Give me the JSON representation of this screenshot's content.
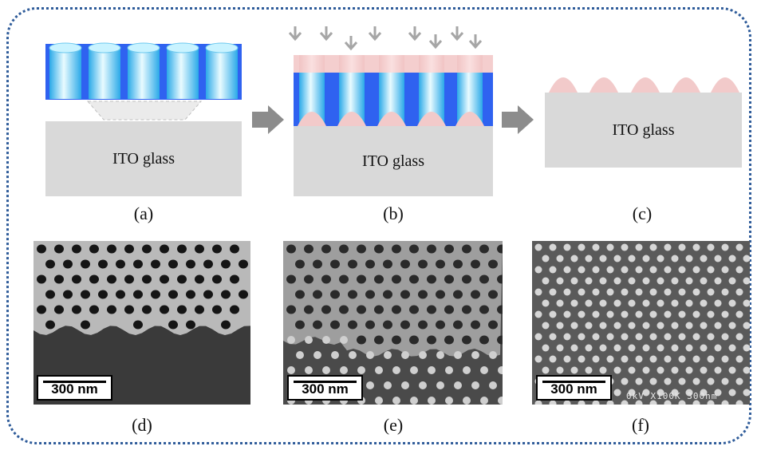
{
  "panels": {
    "a": {
      "caption": "(a)",
      "substrate_label": "ITO glass"
    },
    "b": {
      "caption": "(b)",
      "substrate_label": "ITO glass"
    },
    "c": {
      "caption": "(c)",
      "substrate_label": "ITO glass"
    },
    "d": {
      "caption": "(d)",
      "scale_bar": "300 nm"
    },
    "e": {
      "caption": "(e)",
      "scale_bar": "300 nm"
    },
    "f": {
      "caption": "(f)",
      "scale_bar": "300 nm",
      "instrument_text": "0kV  X100K  300nm"
    }
  },
  "colors": {
    "template_blue": "#2f62f0",
    "pore_cyan": "#8fe6ff",
    "deposit_pink": "#f2caca",
    "substrate_gray": "#d9d9d9",
    "arrow_gray": "#8c8c8c",
    "frame_blue": "#2f5c9a"
  },
  "icons": [
    "process-arrow-icon",
    "deposition-arrow-icon"
  ]
}
